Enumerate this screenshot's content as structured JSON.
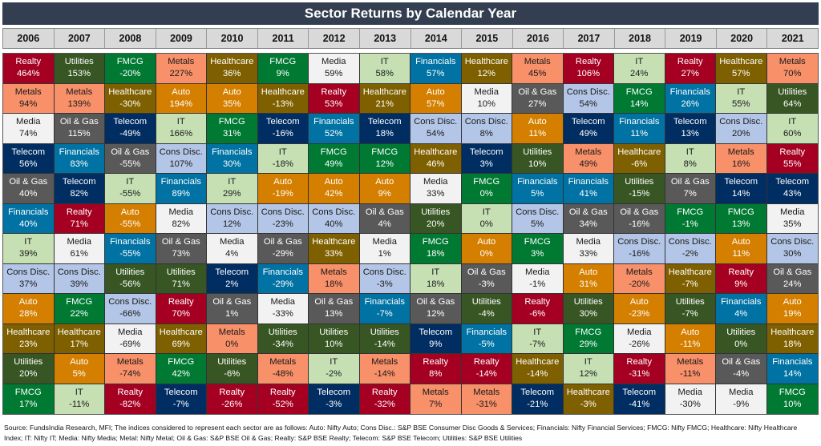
{
  "title": "Sector Returns by Calendar Year",
  "footer": "Source: FundsIndia Research, MFI; The indices considered to represent each sector are as follows: Auto: Nifty Auto; Cons Disc.: S&P BSE Consumer Disc Goods & Services; Financials: Nifty Financial Services; FMCG: Nifty FMCG; Healthcare: Nifty Healthcare Index; IT: Nifty IT; Media: Nifty Media; Metal: Nifty Metal; Oil & Gas: S&P BSE Oil & Gas; Realty: S&P BSE Realty; Telecom: S&P BSE Telecom; Utilities: S&P BSE Utilities",
  "chart_data": {
    "type": "table",
    "title": "Sector Returns by Calendar Year",
    "unit": "%",
    "sector_colors": {
      "Realty": {
        "bg": "#a50021",
        "fg": "#ffffff"
      },
      "Utilities": {
        "bg": "#375623",
        "fg": "#ffffff"
      },
      "FMCG": {
        "bg": "#007a33",
        "fg": "#ffffff"
      },
      "Metals": {
        "bg": "#f8906a",
        "fg": "#1a1a1a"
      },
      "Healthcare": {
        "bg": "#7f6000",
        "fg": "#ffffff"
      },
      "Media": {
        "bg": "#f2f2f2",
        "fg": "#1a1a1a"
      },
      "IT": {
        "bg": "#c6e0b4",
        "fg": "#1a1a1a"
      },
      "Financials": {
        "bg": "#0072a3",
        "fg": "#ffffff"
      },
      "Auto": {
        "bg": "#d47f00",
        "fg": "#ffffff"
      },
      "Oil & Gas": {
        "bg": "#595959",
        "fg": "#ffffff"
      },
      "Telecom": {
        "bg": "#002d62",
        "fg": "#ffffff"
      },
      "Cons Disc.": {
        "bg": "#b4c6e7",
        "fg": "#1a1a1a"
      }
    },
    "years": [
      {
        "year": "2006",
        "ranked": [
          [
            "Realty",
            464
          ],
          [
            "Metals",
            94
          ],
          [
            "Media",
            74
          ],
          [
            "Telecom",
            56
          ],
          [
            "Oil & Gas",
            40
          ],
          [
            "Financials",
            40
          ],
          [
            "IT",
            39
          ],
          [
            "Cons Disc.",
            37
          ],
          [
            "Auto",
            28
          ],
          [
            "Healthcare",
            23
          ],
          [
            "Utilities",
            20
          ],
          [
            "FMCG",
            17
          ]
        ]
      },
      {
        "year": "2007",
        "ranked": [
          [
            "Utilities",
            153
          ],
          [
            "Metals",
            139
          ],
          [
            "Oil & Gas",
            115
          ],
          [
            "Financials",
            83
          ],
          [
            "Telecom",
            82
          ],
          [
            "Realty",
            71
          ],
          [
            "Media",
            61
          ],
          [
            "Cons Disc.",
            39
          ],
          [
            "FMCG",
            22
          ],
          [
            "Healthcare",
            17
          ],
          [
            "Auto",
            5
          ],
          [
            "IT",
            -11
          ]
        ]
      },
      {
        "year": "2008",
        "ranked": [
          [
            "FMCG",
            -20
          ],
          [
            "Healthcare",
            -30
          ],
          [
            "Telecom",
            -49
          ],
          [
            "Oil & Gas",
            -55
          ],
          [
            "IT",
            -55
          ],
          [
            "Auto",
            -55
          ],
          [
            "Financials",
            -55
          ],
          [
            "Utilities",
            -56
          ],
          [
            "Cons Disc.",
            -66
          ],
          [
            "Media",
            -69
          ],
          [
            "Metals",
            -74
          ],
          [
            "Realty",
            -82
          ]
        ]
      },
      {
        "year": "2009",
        "ranked": [
          [
            "Metals",
            227
          ],
          [
            "Auto",
            194
          ],
          [
            "IT",
            166
          ],
          [
            "Cons Disc.",
            107
          ],
          [
            "Financials",
            89
          ],
          [
            "Media",
            82
          ],
          [
            "Oil & Gas",
            73
          ],
          [
            "Utilities",
            71
          ],
          [
            "Realty",
            70
          ],
          [
            "Healthcare",
            69
          ],
          [
            "FMCG",
            42
          ],
          [
            "Telecom",
            -7
          ]
        ]
      },
      {
        "year": "2010",
        "ranked": [
          [
            "Healthcare",
            36
          ],
          [
            "Auto",
            35
          ],
          [
            "FMCG",
            31
          ],
          [
            "Financials",
            30
          ],
          [
            "IT",
            29
          ],
          [
            "Cons Disc.",
            12
          ],
          [
            "Media",
            4
          ],
          [
            "Telecom",
            2
          ],
          [
            "Oil & Gas",
            1
          ],
          [
            "Metals",
            0
          ],
          [
            "Utilities",
            -6
          ],
          [
            "Realty",
            -26
          ]
        ]
      },
      {
        "year": "2011",
        "ranked": [
          [
            "FMCG",
            9
          ],
          [
            "Healthcare",
            -13
          ],
          [
            "Telecom",
            -16
          ],
          [
            "IT",
            -18
          ],
          [
            "Auto",
            -19
          ],
          [
            "Cons Disc.",
            -23
          ],
          [
            "Oil & Gas",
            -29
          ],
          [
            "Financials",
            -29
          ],
          [
            "Media",
            -33
          ],
          [
            "Utilities",
            -34
          ],
          [
            "Metals",
            -48
          ],
          [
            "Realty",
            -52
          ]
        ]
      },
      {
        "year": "2012",
        "ranked": [
          [
            "Media",
            59
          ],
          [
            "Realty",
            53
          ],
          [
            "Financials",
            52
          ],
          [
            "FMCG",
            49
          ],
          [
            "Auto",
            42
          ],
          [
            "Cons Disc.",
            40
          ],
          [
            "Healthcare",
            33
          ],
          [
            "Metals",
            18
          ],
          [
            "Oil & Gas",
            13
          ],
          [
            "Utilities",
            10
          ],
          [
            "IT",
            -2
          ],
          [
            "Telecom",
            -3
          ]
        ]
      },
      {
        "year": "2013",
        "ranked": [
          [
            "IT",
            58
          ],
          [
            "Healthcare",
            21
          ],
          [
            "Telecom",
            18
          ],
          [
            "FMCG",
            12
          ],
          [
            "Auto",
            9
          ],
          [
            "Oil & Gas",
            4
          ],
          [
            "Media",
            1
          ],
          [
            "Cons Disc.",
            -3
          ],
          [
            "Financials",
            -7
          ],
          [
            "Utilities",
            -14
          ],
          [
            "Metals",
            -14
          ],
          [
            "Realty",
            -32
          ]
        ]
      },
      {
        "year": "2014",
        "ranked": [
          [
            "Financials",
            57
          ],
          [
            "Auto",
            57
          ],
          [
            "Cons Disc.",
            54
          ],
          [
            "Healthcare",
            46
          ],
          [
            "Media",
            33
          ],
          [
            "Utilities",
            20
          ],
          [
            "FMCG",
            18
          ],
          [
            "IT",
            18
          ],
          [
            "Oil & Gas",
            12
          ],
          [
            "Telecom",
            9
          ],
          [
            "Realty",
            8
          ],
          [
            "Metals",
            7
          ]
        ]
      },
      {
        "year": "2015",
        "ranked": [
          [
            "Healthcare",
            12
          ],
          [
            "Media",
            10
          ],
          [
            "Cons Disc.",
            8
          ],
          [
            "Telecom",
            3
          ],
          [
            "FMCG",
            0
          ],
          [
            "IT",
            0
          ],
          [
            "Auto",
            0
          ],
          [
            "Oil & Gas",
            -3
          ],
          [
            "Utilities",
            -4
          ],
          [
            "Financials",
            -5
          ],
          [
            "Realty",
            -14
          ],
          [
            "Metals",
            -31
          ]
        ]
      },
      {
        "year": "2016",
        "ranked": [
          [
            "Metals",
            45
          ],
          [
            "Oil & Gas",
            27
          ],
          [
            "Auto",
            11
          ],
          [
            "Utilities",
            10
          ],
          [
            "Financials",
            5
          ],
          [
            "Cons Disc.",
            5
          ],
          [
            "FMCG",
            3
          ],
          [
            "Media",
            -1
          ],
          [
            "Realty",
            -6
          ],
          [
            "IT",
            -7
          ],
          [
            "Healthcare",
            -14
          ],
          [
            "Telecom",
            -21
          ]
        ]
      },
      {
        "year": "2017",
        "ranked": [
          [
            "Realty",
            106
          ],
          [
            "Cons Disc.",
            54
          ],
          [
            "Telecom",
            49
          ],
          [
            "Metals",
            49
          ],
          [
            "Financials",
            41
          ],
          [
            "Oil & Gas",
            34
          ],
          [
            "Media",
            33
          ],
          [
            "Auto",
            31
          ],
          [
            "Utilities",
            30
          ],
          [
            "FMCG",
            29
          ],
          [
            "IT",
            12
          ],
          [
            "Healthcare",
            -3
          ]
        ]
      },
      {
        "year": "2018",
        "ranked": [
          [
            "IT",
            24
          ],
          [
            "FMCG",
            14
          ],
          [
            "Financials",
            11
          ],
          [
            "Healthcare",
            -6
          ],
          [
            "Utilities",
            -15
          ],
          [
            "Oil & Gas",
            -16
          ],
          [
            "Cons Disc.",
            -16
          ],
          [
            "Metals",
            -20
          ],
          [
            "Auto",
            -23
          ],
          [
            "Media",
            -26
          ],
          [
            "Realty",
            -31
          ],
          [
            "Telecom",
            -41
          ]
        ]
      },
      {
        "year": "2019",
        "ranked": [
          [
            "Realty",
            27
          ],
          [
            "Financials",
            26
          ],
          [
            "Telecom",
            13
          ],
          [
            "IT",
            8
          ],
          [
            "Oil & Gas",
            7
          ],
          [
            "FMCG",
            -1
          ],
          [
            "Cons Disc.",
            -2
          ],
          [
            "Healthcare",
            -7
          ],
          [
            "Utilities",
            -7
          ],
          [
            "Auto",
            -11
          ],
          [
            "Metals",
            -11
          ],
          [
            "Media",
            -30
          ]
        ]
      },
      {
        "year": "2020",
        "ranked": [
          [
            "Healthcare",
            57
          ],
          [
            "IT",
            55
          ],
          [
            "Cons Disc.",
            20
          ],
          [
            "Metals",
            16
          ],
          [
            "Telecom",
            14
          ],
          [
            "FMCG",
            13
          ],
          [
            "Auto",
            11
          ],
          [
            "Realty",
            9
          ],
          [
            "Financials",
            4
          ],
          [
            "Utilities",
            0
          ],
          [
            "Oil & Gas",
            -4
          ],
          [
            "Media",
            -9
          ]
        ]
      },
      {
        "year": "2021",
        "ranked": [
          [
            "Metals",
            70
          ],
          [
            "Utilities",
            64
          ],
          [
            "IT",
            60
          ],
          [
            "Realty",
            55
          ],
          [
            "Telecom",
            43
          ],
          [
            "Media",
            35
          ],
          [
            "Cons Disc.",
            30
          ],
          [
            "Oil & Gas",
            24
          ],
          [
            "Auto",
            19
          ],
          [
            "Healthcare",
            18
          ],
          [
            "Financials",
            14
          ],
          [
            "FMCG",
            10
          ]
        ]
      }
    ]
  }
}
